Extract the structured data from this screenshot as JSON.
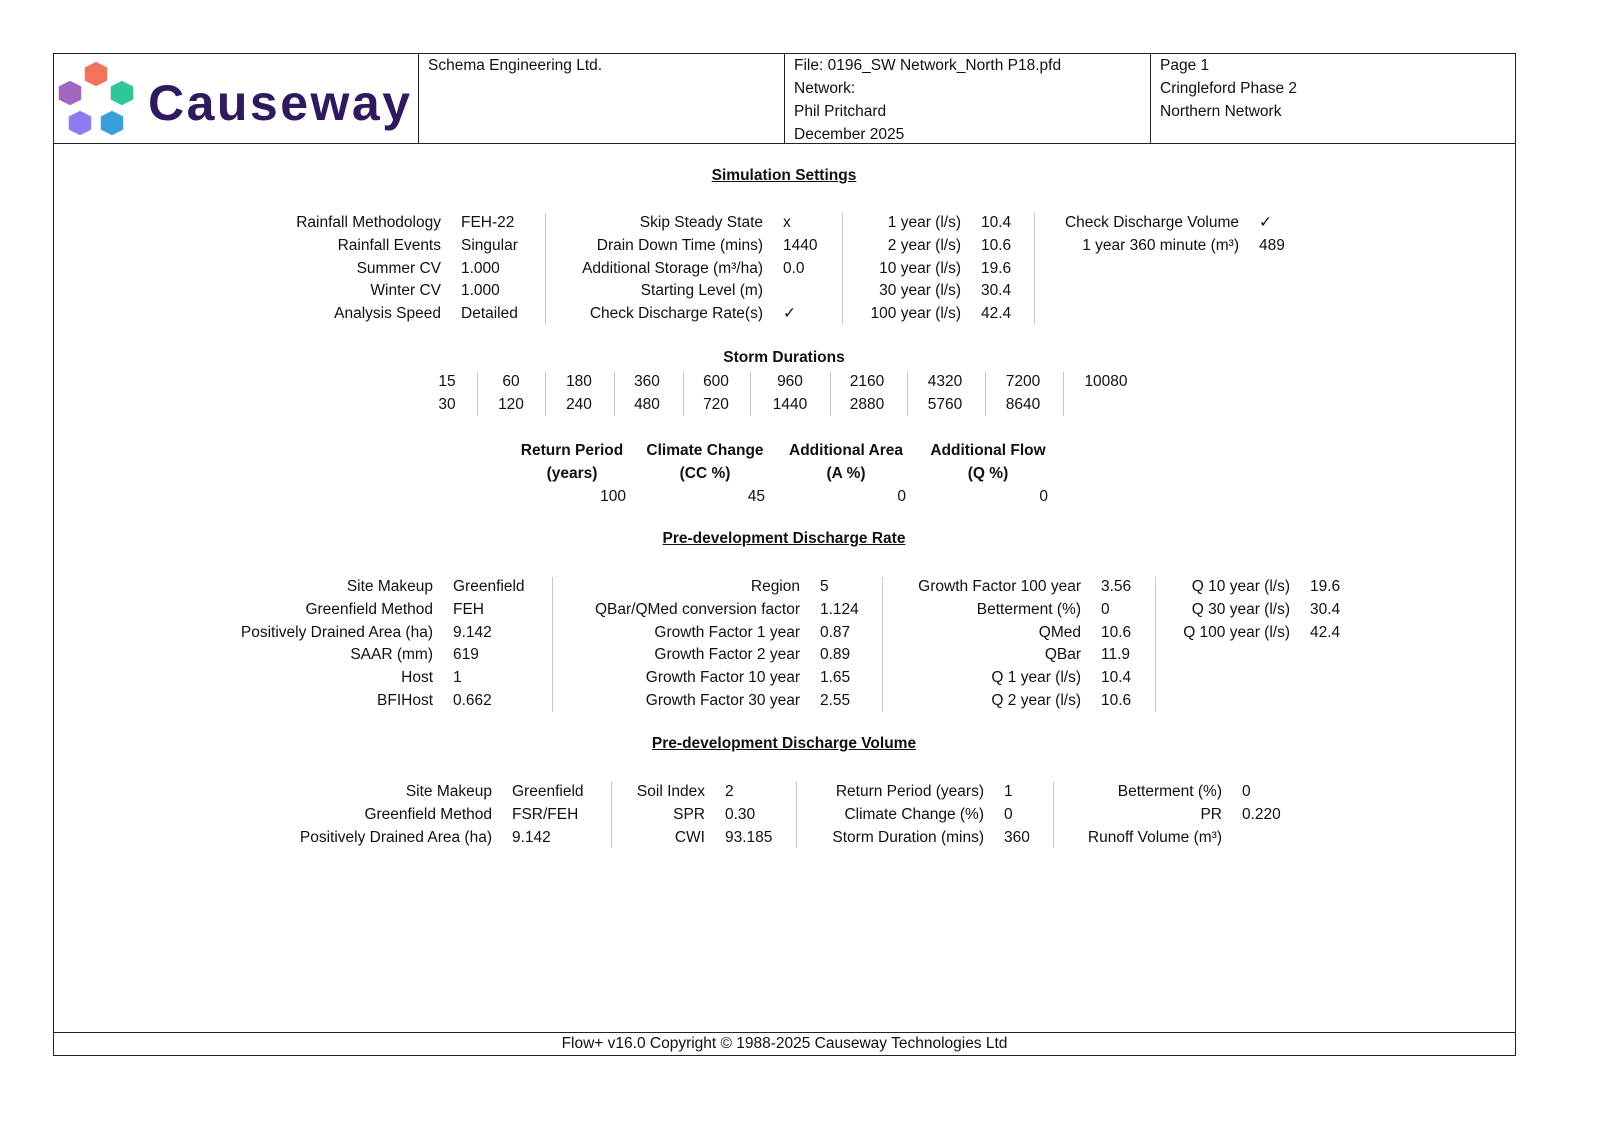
{
  "header": {
    "logo_text": "Causeway",
    "company": "Schema Engineering Ltd.",
    "file": "File: 0196_SW Network_North P18.pfd",
    "network": "Network:",
    "author": "Phil Pritchard",
    "date": "December 2025",
    "page": "Page 1",
    "project": "Cringleford Phase 2",
    "subproject": "Northern Network"
  },
  "simulation_settings": {
    "title": "Simulation Settings",
    "groups": [
      [
        {
          "label": "Rainfall Methodology",
          "value": "FEH-22"
        },
        {
          "label": "Rainfall Events",
          "value": "Singular"
        },
        {
          "label": "Summer CV",
          "value": "1.000"
        },
        {
          "label": "Winter CV",
          "value": "1.000"
        },
        {
          "label": "Analysis Speed",
          "value": "Detailed"
        }
      ],
      [
        {
          "label": "Skip Steady State",
          "value": "x"
        },
        {
          "label": "Drain Down Time (mins)",
          "value": "1440"
        },
        {
          "label": "Additional Storage (m³/ha)",
          "value": "0.0"
        },
        {
          "label": "Starting Level (m)",
          "value": ""
        },
        {
          "label": "Check Discharge Rate(s)",
          "value": "✓"
        }
      ],
      [
        {
          "label": "1 year (l/s)",
          "value": "10.4"
        },
        {
          "label": "2 year (l/s)",
          "value": "10.6"
        },
        {
          "label": "10 year (l/s)",
          "value": "19.6"
        },
        {
          "label": "30 year (l/s)",
          "value": "30.4"
        },
        {
          "label": "100 year (l/s)",
          "value": "42.4"
        }
      ],
      [
        {
          "label": "Check Discharge Volume",
          "value": "✓"
        },
        {
          "label": "1 year 360 minute (m³)",
          "value": "489"
        }
      ]
    ]
  },
  "storm_durations": {
    "title": "Storm Durations",
    "columns": [
      [
        "15",
        "30"
      ],
      [
        "60",
        "120"
      ],
      [
        "180",
        "240"
      ],
      [
        "360",
        "480"
      ],
      [
        "600",
        "720"
      ],
      [
        "960",
        "1440"
      ],
      [
        "2160",
        "2880"
      ],
      [
        "4320",
        "5760"
      ],
      [
        "7200",
        "8640"
      ],
      [
        "10080",
        ""
      ]
    ]
  },
  "return_periods": {
    "headers": [
      [
        "Return Period",
        "(years)"
      ],
      [
        "Climate Change",
        "(CC %)"
      ],
      [
        "Additional Area",
        "(A %)"
      ],
      [
        "Additional Flow",
        "(Q %)"
      ]
    ],
    "values": [
      "100",
      "45",
      "0",
      "0"
    ]
  },
  "predev_rate": {
    "title": "Pre-development Discharge Rate",
    "groups": [
      [
        {
          "label": "Site Makeup",
          "value": "Greenfield"
        },
        {
          "label": "Greenfield Method",
          "value": "FEH"
        },
        {
          "label": "Positively Drained Area (ha)",
          "value": "9.142"
        },
        {
          "label": "SAAR (mm)",
          "value": "619"
        },
        {
          "label": "Host",
          "value": "1"
        },
        {
          "label": "BFIHost",
          "value": "0.662"
        }
      ],
      [
        {
          "label": "Region",
          "value": "5"
        },
        {
          "label": "QBar/QMed conversion factor",
          "value": "1.124"
        },
        {
          "label": "Growth Factor 1 year",
          "value": "0.87"
        },
        {
          "label": "Growth Factor 2 year",
          "value": "0.89"
        },
        {
          "label": "Growth Factor 10 year",
          "value": "1.65"
        },
        {
          "label": "Growth Factor 30 year",
          "value": "2.55"
        }
      ],
      [
        {
          "label": "Growth Factor 100 year",
          "value": "3.56"
        },
        {
          "label": "Betterment (%)",
          "value": "0"
        },
        {
          "label": "QMed",
          "value": "10.6"
        },
        {
          "label": "QBar",
          "value": "11.9"
        },
        {
          "label": "Q 1 year (l/s)",
          "value": "10.4"
        },
        {
          "label": "Q 2 year (l/s)",
          "value": "10.6"
        }
      ],
      [
        {
          "label": "Q 10 year (l/s)",
          "value": "19.6"
        },
        {
          "label": "Q 30 year (l/s)",
          "value": "30.4"
        },
        {
          "label": "Q 100 year (l/s)",
          "value": "42.4"
        }
      ]
    ]
  },
  "predev_volume": {
    "title": "Pre-development Discharge Volume",
    "groups": [
      [
        {
          "label": "Site Makeup",
          "value": "Greenfield"
        },
        {
          "label": "Greenfield Method",
          "value": "FSR/FEH"
        },
        {
          "label": "Positively Drained Area (ha)",
          "value": "9.142"
        }
      ],
      [
        {
          "label": "Soil Index",
          "value": "2"
        },
        {
          "label": "SPR",
          "value": "0.30"
        },
        {
          "label": "CWI",
          "value": "93.185"
        }
      ],
      [
        {
          "label": "Return Period (years)",
          "value": "1"
        },
        {
          "label": "Climate Change (%)",
          "value": "0"
        },
        {
          "label": "Storm Duration (mins)",
          "value": "360"
        }
      ],
      [
        {
          "label": "Betterment (%)",
          "value": "0"
        },
        {
          "label": "PR",
          "value": "0.220"
        },
        {
          "label": "Runoff Volume (m³)",
          "value": ""
        }
      ]
    ]
  },
  "footer": {
    "text": "Flow+ v16.0 Copyright © 1988-2025 Causeway Technologies Ltd"
  },
  "colors": {
    "logo_text": "#2e1a5c",
    "cube_orange": "#f0735a",
    "cube_green": "#2ec79a",
    "cube_purple": "#a066c0",
    "cube_violet": "#8c7cf0",
    "cube_blue": "#3aa0dc"
  }
}
